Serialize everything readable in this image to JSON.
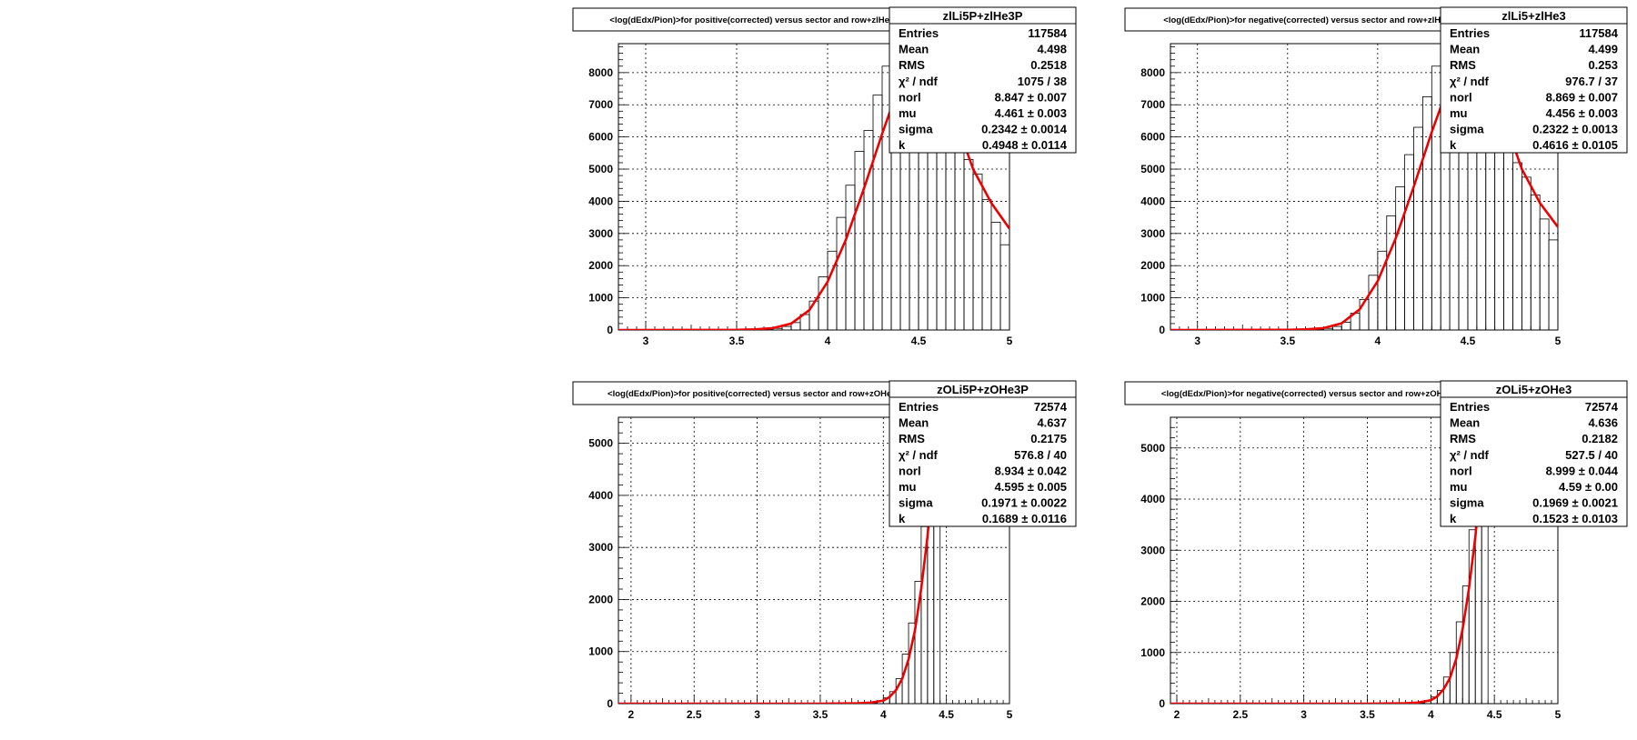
{
  "chart_data": [
    {
      "type": "bar",
      "title": "<log(dEdx/Pion)>for positive(corrected) versus sector and row+zlHe3P",
      "stats": {
        "name": "zlLi5P+zlHe3P",
        "rows": [
          {
            "label": "Entries",
            "value": "117584"
          },
          {
            "label": "Mean",
            "value": "4.498"
          },
          {
            "label": "RMS",
            "value": "0.2518"
          },
          {
            "label": "χ² / ndf",
            "value": "1075 / 38"
          },
          {
            "label": "norl",
            "value": "8.847 ± 0.007"
          },
          {
            "label": "mu",
            "value": "4.461 ± 0.003"
          },
          {
            "label": "sigma",
            "value": "0.2342 ± 0.0014"
          },
          {
            "label": "k",
            "value": "0.4948 ± 0.0114"
          }
        ]
      },
      "xlim": [
        2.85,
        5.0
      ],
      "ylim": [
        0,
        8900
      ],
      "xticks": [
        3,
        3.5,
        4,
        4.5,
        5
      ],
      "xtick_labels": [
        "3",
        "3.5",
        "4",
        "4.5",
        "5"
      ],
      "yticks": [
        0,
        1000,
        2000,
        3000,
        4000,
        5000,
        6000,
        7000,
        8000
      ],
      "ytick_labels": [
        "0",
        "1000",
        "2000",
        "3000",
        "4000",
        "5000",
        "6000",
        "7000",
        "8000"
      ],
      "bin_width": 0.05,
      "x": [
        3.625,
        3.675,
        3.725,
        3.775,
        3.825,
        3.875,
        3.925,
        3.975,
        4.025,
        4.075,
        4.125,
        4.175,
        4.225,
        4.275,
        4.325,
        4.375,
        4.425,
        4.475,
        4.525,
        4.575,
        4.625,
        4.675,
        4.725,
        4.775,
        4.825,
        4.875,
        4.925,
        4.975
      ],
      "values": [
        8,
        20,
        50,
        110,
        230,
        480,
        900,
        1650,
        2450,
        3500,
        4500,
        5550,
        6200,
        7300,
        8200,
        8700,
        8800,
        8700,
        8300,
        7800,
        7100,
        6300,
        5800,
        5300,
        4850,
        4050,
        3350,
        2650
      ],
      "fit": {
        "name": "fit",
        "x": [
          2.85,
          3.5,
          3.6,
          3.7,
          3.8,
          3.9,
          4.0,
          4.1,
          4.2,
          4.3,
          4.4,
          4.45,
          4.5,
          4.6,
          4.7,
          4.8,
          4.9,
          5.0
        ],
        "y": [
          0,
          5,
          20,
          60,
          200,
          620,
          1500,
          2800,
          4400,
          6100,
          7700,
          8300,
          8400,
          8000,
          6600,
          5000,
          3950,
          3150
        ]
      }
    },
    {
      "type": "bar",
      "title": "<log(dEdx/Pion)>for negative(corrected) versus sector and row+zlHe3",
      "stats": {
        "name": "zlLi5+zlHe3",
        "rows": [
          {
            "label": "Entries",
            "value": "117584"
          },
          {
            "label": "Mean",
            "value": "4.499"
          },
          {
            "label": "RMS",
            "value": "0.253"
          },
          {
            "label": "χ² / ndf",
            "value": "976.7 / 37"
          },
          {
            "label": "norl",
            "value": "8.869 ± 0.007"
          },
          {
            "label": "mu",
            "value": "4.456 ± 0.003"
          },
          {
            "label": "sigma",
            "value": "0.2322 ± 0.0013"
          },
          {
            "label": "k",
            "value": "0.4616 ± 0.0105"
          }
        ]
      },
      "xlim": [
        2.85,
        5.0
      ],
      "ylim": [
        0,
        8900
      ],
      "xticks": [
        3,
        3.5,
        4,
        4.5,
        5
      ],
      "xtick_labels": [
        "3",
        "3.5",
        "4",
        "4.5",
        "5"
      ],
      "yticks": [
        0,
        1000,
        2000,
        3000,
        4000,
        5000,
        6000,
        7000,
        8000
      ],
      "ytick_labels": [
        "0",
        "1000",
        "2000",
        "3000",
        "4000",
        "5000",
        "6000",
        "7000",
        "8000"
      ],
      "bin_width": 0.05,
      "x": [
        3.625,
        3.675,
        3.725,
        3.775,
        3.825,
        3.875,
        3.925,
        3.975,
        4.025,
        4.075,
        4.125,
        4.175,
        4.225,
        4.275,
        4.325,
        4.375,
        4.425,
        4.475,
        4.525,
        4.575,
        4.625,
        4.675,
        4.725,
        4.775,
        4.825,
        4.875,
        4.925,
        4.975
      ],
      "values": [
        8,
        20,
        50,
        110,
        240,
        520,
        950,
        1700,
        2450,
        3550,
        4450,
        5450,
        6300,
        7250,
        8200,
        8700,
        8800,
        8700,
        8300,
        7800,
        7100,
        6300,
        5700,
        5200,
        4750,
        4200,
        3450,
        2800
      ],
      "fit": {
        "name": "fit",
        "x": [
          2.85,
          3.5,
          3.6,
          3.7,
          3.8,
          3.9,
          4.0,
          4.1,
          4.2,
          4.3,
          4.4,
          4.45,
          4.5,
          4.6,
          4.7,
          4.8,
          4.9,
          5.0
        ],
        "y": [
          0,
          5,
          20,
          60,
          210,
          640,
          1520,
          2850,
          4450,
          6150,
          7700,
          8300,
          8400,
          8000,
          6600,
          5000,
          3950,
          3200
        ]
      }
    },
    {
      "type": "bar",
      "title": "<log(dEdx/Pion)>for positive(corrected) versus sector and row+zOHe3P",
      "stats": {
        "name": "zOLi5P+zOHe3P",
        "rows": [
          {
            "label": "Entries",
            "value": "72574"
          },
          {
            "label": "Mean",
            "value": "4.637"
          },
          {
            "label": "RMS",
            "value": "0.2175"
          },
          {
            "label": "χ² / ndf",
            "value": "576.8 / 40"
          },
          {
            "label": "norl",
            "value": "8.934 ± 0.042"
          },
          {
            "label": "mu",
            "value": "4.595 ± 0.005"
          },
          {
            "label": "sigma",
            "value": "0.1971 ± 0.0022"
          },
          {
            "label": "k",
            "value": "0.1689 ± 0.0116"
          }
        ]
      },
      "xlim": [
        1.9,
        5.0
      ],
      "ylim": [
        0,
        5500
      ],
      "xticks": [
        2,
        2.5,
        3,
        3.5,
        4,
        4.5,
        5
      ],
      "xtick_labels": [
        "2",
        "2.5",
        "3",
        "3.5",
        "4",
        "4.5",
        "5"
      ],
      "yticks": [
        0,
        1000,
        2000,
        3000,
        4000,
        5000
      ],
      "ytick_labels": [
        "0",
        "1000",
        "2000",
        "3000",
        "4000",
        "5000"
      ],
      "bin_width": 0.05,
      "x": [
        3.925,
        3.975,
        4.025,
        4.075,
        4.125,
        4.175,
        4.225,
        4.275,
        4.325,
        4.375,
        4.425
      ],
      "values": [
        15,
        50,
        110,
        230,
        480,
        950,
        1550,
        2350,
        3400,
        4600,
        5500
      ],
      "fit": {
        "name": "fit",
        "x": [
          1.9,
          3.5,
          3.8,
          3.9,
          4.0,
          4.05,
          4.1,
          4.15,
          4.2,
          4.25,
          4.3,
          4.35,
          4.4,
          4.45
        ],
        "y": [
          0,
          0,
          8,
          20,
          60,
          130,
          260,
          480,
          850,
          1400,
          2200,
          3200,
          4500,
          5800
        ]
      }
    },
    {
      "type": "bar",
      "title": "<log(dEdx/Pion)>for negative(corrected) versus sector and row+zOHe3",
      "stats": {
        "name": "zOLi5+zOHe3",
        "rows": [
          {
            "label": "Entries",
            "value": "72574"
          },
          {
            "label": "Mean",
            "value": "4.636"
          },
          {
            "label": "RMS",
            "value": "0.2182"
          },
          {
            "label": "χ² / ndf",
            "value": "527.5 / 40"
          },
          {
            "label": "norl",
            "value": "8.999 ± 0.044"
          },
          {
            "label": "mu",
            "value": "4.59 ± 0.00"
          },
          {
            "label": "sigma",
            "value": "0.1969 ± 0.0021"
          },
          {
            "label": "k",
            "value": "0.1523 ± 0.0103"
          }
        ]
      },
      "xlim": [
        1.95,
        5.0
      ],
      "ylim": [
        0,
        5600
      ],
      "xticks": [
        2,
        2.5,
        3,
        3.5,
        4,
        4.5,
        5
      ],
      "xtick_labels": [
        "2",
        "2.5",
        "3",
        "3.5",
        "4",
        "4.5",
        "5"
      ],
      "yticks": [
        0,
        1000,
        2000,
        3000,
        4000,
        5000
      ],
      "ytick_labels": [
        "0",
        "1000",
        "2000",
        "3000",
        "4000",
        "5000"
      ],
      "bin_width": 0.05,
      "x": [
        3.925,
        3.975,
        4.025,
        4.075,
        4.125,
        4.175,
        4.225,
        4.275,
        4.325,
        4.375,
        4.425
      ],
      "values": [
        15,
        55,
        130,
        260,
        520,
        1000,
        1600,
        2300,
        3400,
        4500,
        5600
      ],
      "fit": {
        "name": "fit",
        "x": [
          1.95,
          3.5,
          3.8,
          3.9,
          4.0,
          4.05,
          4.1,
          4.15,
          4.2,
          4.25,
          4.3,
          4.35,
          4.4,
          4.45
        ],
        "y": [
          0,
          0,
          8,
          22,
          65,
          140,
          280,
          500,
          880,
          1450,
          2250,
          3250,
          4550,
          5900
        ]
      }
    }
  ]
}
